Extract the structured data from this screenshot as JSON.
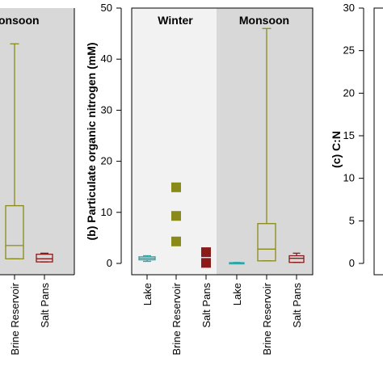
{
  "chart_data": [
    {
      "panel": "left (partial)",
      "type": "box",
      "panel_labels": [
        "onsoon"
      ],
      "categories": [
        "Brine Reservoir",
        "Salt Pans"
      ],
      "series": [
        {
          "category": "Brine Reservoir",
          "color": "#8a8a1a",
          "whisker_low": 0.9,
          "q1": 0.9,
          "median": 3.5,
          "q3": 11.3,
          "whisker_high": 43.0
        },
        {
          "category": "Salt Pans",
          "color": "#8b1a1a",
          "whisker_low": 0.3,
          "q1": 0.3,
          "median": 0.9,
          "q3": 1.8,
          "whisker_high": 2.0
        }
      ],
      "ylim": [
        0,
        50
      ]
    },
    {
      "panel": "b",
      "type": "box",
      "ylabel": "(b) Particulate organic nitrogen (mM)",
      "panel_labels": [
        "Winter",
        "Monsoon"
      ],
      "categories": [
        "Lake",
        "Brine Reservoir",
        "Salt Pans",
        "Lake",
        "Brine Reservoir",
        "Salt Pans"
      ],
      "yticks": [
        "0",
        "10",
        "20",
        "30",
        "40",
        "50"
      ],
      "ylim": [
        0,
        50
      ],
      "winter": [
        {
          "category": "Lake",
          "color": "#2aa6a6",
          "whisker_low": 0.4,
          "q1": 0.7,
          "median": 1.0,
          "q3": 1.3,
          "whisker_high": 1.5
        },
        {
          "category": "Brine Reservoir",
          "color": "#8a8a1a",
          "points": [
            4.3,
            9.3,
            14.9
          ]
        },
        {
          "category": "Salt Pans",
          "color": "#8b1a1a",
          "points": [
            0.1,
            2.2
          ]
        }
      ],
      "monsoon": [
        {
          "category": "Lake",
          "color": "#2aa6a6",
          "whisker_low": 0.05,
          "q1": 0.05,
          "median": 0.1,
          "q3": 0.15,
          "whisker_high": 0.2
        },
        {
          "category": "Brine Reservoir",
          "color": "#8a8a1a",
          "whisker_low": 0.5,
          "q1": 0.5,
          "median": 2.8,
          "q3": 7.8,
          "whisker_high": 46.0
        },
        {
          "category": "Salt Pans",
          "color": "#8b1a1a",
          "whisker_low": 0.2,
          "q1": 0.2,
          "median": 1.0,
          "q3": 1.5,
          "whisker_high": 2.0
        }
      ]
    },
    {
      "panel": "c (partial)",
      "type": "box",
      "ylabel": "(c) C:N",
      "yticks": [
        "0",
        "5",
        "10",
        "15",
        "20",
        "25",
        "30"
      ],
      "ylim": [
        0,
        30
      ]
    }
  ]
}
